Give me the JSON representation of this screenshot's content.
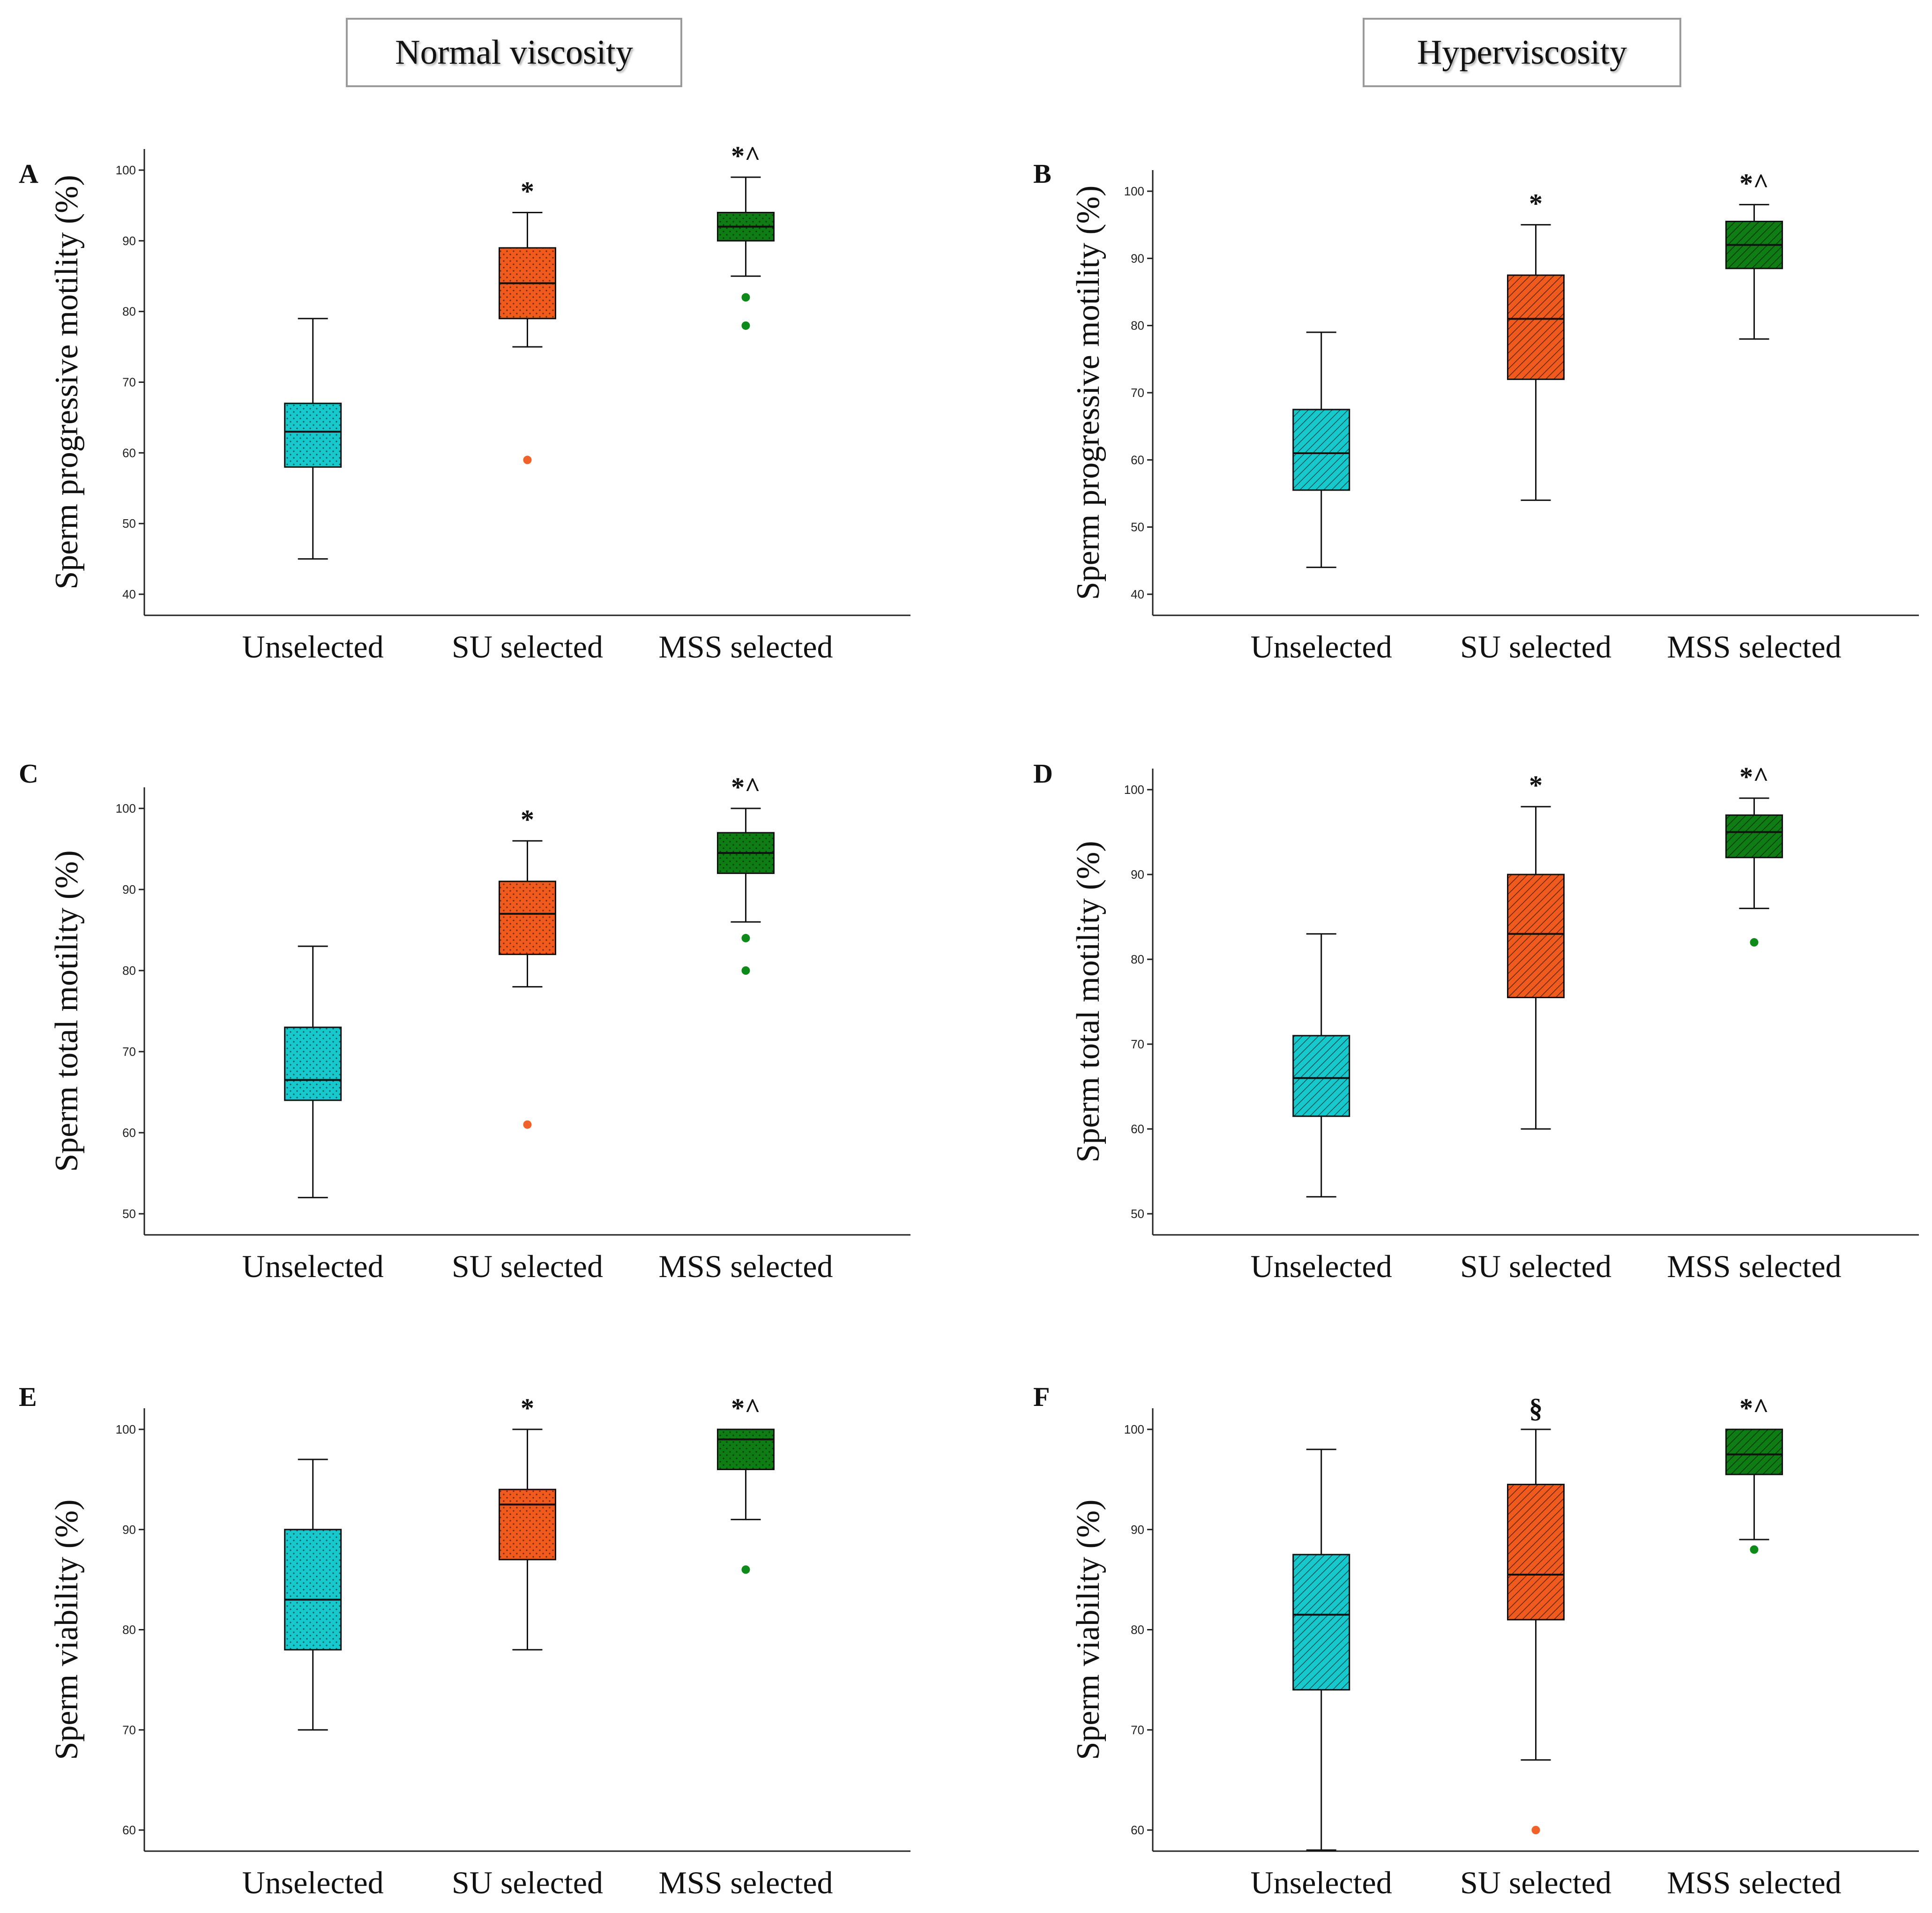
{
  "headers": {
    "left": "Normal viscosity",
    "right": "Hyperviscosity"
  },
  "groups": {
    "colors": [
      "#17c9cc",
      "#f05a1c",
      "#0e7d14"
    ],
    "outlier_colors": [
      "#17c9cc",
      "#f0622a",
      "#0e8a1a"
    ]
  },
  "chart_data": [
    {
      "panel": "A",
      "type": "boxplot",
      "pattern": "dots",
      "ylabel": "Sperm progressive motility (%)",
      "ylim": [
        40,
        100
      ],
      "yticks": [
        40,
        50,
        60,
        70,
        80,
        90,
        100
      ],
      "categories": [
        "Unselected",
        "SU selected",
        "MSS selected"
      ],
      "boxes": [
        {
          "min": 45,
          "q1": 58,
          "median": 63,
          "q3": 67,
          "max": 79,
          "outliers": [],
          "mark": ""
        },
        {
          "min": 75,
          "q1": 79,
          "median": 84,
          "q3": 89,
          "max": 94,
          "outliers": [
            59
          ],
          "mark": "*"
        },
        {
          "min": 85,
          "q1": 90,
          "median": 92,
          "q3": 94,
          "max": 99,
          "outliers": [
            82,
            78
          ],
          "mark": "*^"
        }
      ]
    },
    {
      "panel": "B",
      "type": "boxplot",
      "pattern": "hatch",
      "ylabel": "Sperm progressive motility (%)",
      "ylim": [
        40,
        100
      ],
      "yticks": [
        40,
        50,
        60,
        70,
        80,
        90,
        100
      ],
      "categories": [
        "Unselected",
        "SU selected",
        "MSS selected"
      ],
      "boxes": [
        {
          "min": 44,
          "q1": 55.5,
          "median": 61,
          "q3": 67.5,
          "max": 79,
          "outliers": [],
          "mark": ""
        },
        {
          "min": 54,
          "q1": 72,
          "median": 81,
          "q3": 87.5,
          "max": 95,
          "outliers": [],
          "mark": "*"
        },
        {
          "min": 78,
          "q1": 88.5,
          "median": 92,
          "q3": 95.5,
          "max": 98,
          "outliers": [],
          "mark": "*^"
        }
      ]
    },
    {
      "panel": "C",
      "type": "boxplot",
      "pattern": "dots",
      "ylabel": "Sperm total motility (%)",
      "ylim": [
        50,
        100
      ],
      "yticks": [
        50,
        60,
        70,
        80,
        90,
        100
      ],
      "categories": [
        "Unselected",
        "SU selected",
        "MSS selected"
      ],
      "boxes": [
        {
          "min": 52,
          "q1": 64,
          "median": 66.5,
          "q3": 73,
          "max": 83,
          "outliers": [],
          "mark": ""
        },
        {
          "min": 78,
          "q1": 82,
          "median": 87,
          "q3": 91,
          "max": 96,
          "outliers": [
            61
          ],
          "mark": "*"
        },
        {
          "min": 86,
          "q1": 92,
          "median": 94.5,
          "q3": 97,
          "max": 100,
          "outliers": [
            84,
            80
          ],
          "mark": "*^"
        }
      ]
    },
    {
      "panel": "D",
      "type": "boxplot",
      "pattern": "hatch",
      "ylabel": "Sperm total motility (%)",
      "ylim": [
        50,
        100
      ],
      "yticks": [
        50,
        60,
        70,
        80,
        90,
        100
      ],
      "categories": [
        "Unselected",
        "SU selected",
        "MSS selected"
      ],
      "boxes": [
        {
          "min": 52,
          "q1": 61.5,
          "median": 66,
          "q3": 71,
          "max": 83,
          "outliers": [],
          "mark": ""
        },
        {
          "min": 60,
          "q1": 75.5,
          "median": 83,
          "q3": 90,
          "max": 98,
          "outliers": [],
          "mark": "*"
        },
        {
          "min": 86,
          "q1": 92,
          "median": 95,
          "q3": 97,
          "max": 99,
          "outliers": [
            82
          ],
          "mark": "*^"
        }
      ]
    },
    {
      "panel": "E",
      "type": "boxplot",
      "pattern": "dots",
      "ylabel": "Sperm viability (%)",
      "ylim": [
        60,
        100
      ],
      "yticks": [
        60,
        70,
        80,
        90,
        100
      ],
      "categories": [
        "Unselected",
        "SU selected",
        "MSS selected"
      ],
      "boxes": [
        {
          "min": 70,
          "q1": 78,
          "median": 83,
          "q3": 90,
          "max": 97,
          "outliers": [],
          "mark": ""
        },
        {
          "min": 78,
          "q1": 87,
          "median": 92.5,
          "q3": 94,
          "max": 100,
          "outliers": [],
          "mark": "*"
        },
        {
          "min": 91,
          "q1": 96,
          "median": 99,
          "q3": 100,
          "max": 100,
          "outliers": [
            86
          ],
          "mark": "*^"
        }
      ]
    },
    {
      "panel": "F",
      "type": "boxplot",
      "pattern": "hatch",
      "ylabel": "Sperm viability (%)",
      "ylim": [
        60,
        100
      ],
      "yticks": [
        60,
        70,
        80,
        90,
        100
      ],
      "categories": [
        "Unselected",
        "SU selected",
        "MSS selected"
      ],
      "boxes": [
        {
          "min": 58,
          "q1": 74,
          "median": 81.5,
          "q3": 87.5,
          "max": 98,
          "outliers": [],
          "mark": ""
        },
        {
          "min": 67,
          "q1": 81,
          "median": 85.5,
          "q3": 94.5,
          "max": 100,
          "outliers": [
            60
          ],
          "mark": "§"
        },
        {
          "min": 89,
          "q1": 95.5,
          "median": 97.5,
          "q3": 100,
          "max": 100,
          "outliers": [
            88
          ],
          "mark": "*^"
        }
      ]
    }
  ]
}
